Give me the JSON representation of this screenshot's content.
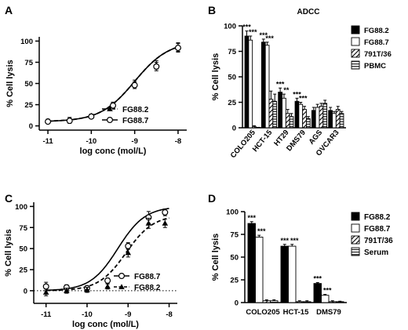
{
  "chart_data": [
    {
      "panel": "A",
      "type": "scatter",
      "title": "",
      "xlabel": "log conc (mol/L)",
      "ylabel": "% Cell lysis",
      "xlim": [
        -11.2,
        -7.8
      ],
      "ylim": [
        -5,
        105
      ],
      "xticks": [
        -11,
        -10,
        -9,
        -8
      ],
      "yticks": [
        0,
        25,
        50,
        75,
        100
      ],
      "legend_position": "bottom-right",
      "fit": {
        "bottom": 5,
        "top": 100,
        "logEC50": -9.0,
        "hill": 1.1
      },
      "series": [
        {
          "name": "FG88.2",
          "marker": "triangle",
          "line": "dashed",
          "x": [
            -11,
            -10.5,
            -10,
            -9.5,
            -9,
            -8.5,
            -8
          ],
          "y": [
            6,
            7,
            12,
            25,
            50,
            72,
            93
          ],
          "err": [
            2,
            3,
            2,
            3,
            4,
            5,
            5
          ]
        },
        {
          "name": "FG88.7",
          "marker": "circle",
          "line": "solid",
          "x": [
            -11,
            -10.5,
            -10,
            -9.5,
            -9,
            -8.5,
            -8
          ],
          "y": [
            5,
            6,
            11,
            24,
            48,
            70,
            92
          ],
          "err": [
            2,
            3,
            2,
            3,
            4,
            5,
            5
          ]
        }
      ]
    },
    {
      "panel": "B",
      "type": "bar",
      "title": "ADCC",
      "xlabel": "",
      "ylabel": "% Cell lysis",
      "ylim": [
        0,
        100
      ],
      "yticks": [
        0,
        25,
        50,
        75,
        100
      ],
      "legend_position": "top-right",
      "categories": [
        "COLO205",
        "HCT-15",
        "HT29",
        "DMS79",
        "AGS",
        "OVCAR3"
      ],
      "series": [
        {
          "name": "FG88.2",
          "pattern": "solid",
          "values": [
            90,
            84,
            35,
            26,
            17,
            17
          ],
          "err": [
            5,
            3,
            4,
            3,
            3,
            3
          ]
        },
        {
          "name": "FG88.7",
          "pattern": "white",
          "values": [
            86,
            81,
            29,
            23,
            20,
            14
          ],
          "err": [
            4,
            3,
            4,
            2,
            3,
            2
          ]
        },
        {
          "name": "791T/36",
          "pattern": "diagonal",
          "values": [
            1,
            28,
            14,
            18,
            21,
            18
          ],
          "err": [
            1,
            8,
            4,
            3,
            3,
            3
          ]
        },
        {
          "name": "PBMC",
          "pattern": "horizontal",
          "values": [
            0,
            26,
            11,
            9,
            24,
            14
          ],
          "err": [
            0,
            7,
            3,
            2,
            3,
            2
          ]
        }
      ],
      "annotations": [
        {
          "category": 0,
          "series": 0,
          "text": "***"
        },
        {
          "category": 0,
          "series": 1,
          "text": "***"
        },
        {
          "category": 1,
          "series": 0,
          "text": "***"
        },
        {
          "category": 1,
          "series": 1,
          "text": "***"
        },
        {
          "category": 2,
          "series": 0,
          "text": "***"
        },
        {
          "category": 2,
          "series": 1,
          "text": "**"
        },
        {
          "category": 3,
          "series": 0,
          "text": "***"
        },
        {
          "category": 3,
          "series": 1,
          "text": "***"
        }
      ]
    },
    {
      "panel": "C",
      "type": "scatter",
      "title": "",
      "xlabel": "log conc (mol/L)",
      "ylabel": "% Cell lysis",
      "xlim": [
        -11.3,
        -7.8
      ],
      "ylim": [
        -15,
        105
      ],
      "xticks": [
        -11,
        -10,
        -9,
        -8
      ],
      "yticks": [
        0,
        25,
        50,
        75,
        100
      ],
      "baseline": 0,
      "legend_position": "bottom-right",
      "series": [
        {
          "name": "FG88.7",
          "marker": "circle",
          "line": "solid",
          "fit": {
            "bottom": 0,
            "top": 100,
            "logEC50": -9.25,
            "hill": 1.3
          },
          "x": [
            -11,
            -10.5,
            -10,
            -9.5,
            -9,
            -8.5,
            -8.1
          ],
          "y": [
            5,
            4,
            3,
            12,
            53,
            87,
            93
          ],
          "err": [
            5,
            3,
            3,
            3,
            4,
            7,
            4
          ]
        },
        {
          "name": "FG88.2",
          "marker": "triangle",
          "line": "dashed",
          "fit": {
            "bottom": 0,
            "top": 90,
            "logEC50": -9.05,
            "hill": 1.3
          },
          "x": [
            -11,
            -10.5,
            -10,
            -9.5,
            -9,
            -8.5,
            -8.1
          ],
          "y": [
            -2,
            0,
            1,
            5,
            45,
            80,
            80
          ],
          "err": [
            4,
            3,
            3,
            3,
            5,
            6,
            5
          ]
        }
      ]
    },
    {
      "panel": "D",
      "type": "bar",
      "title": "",
      "xlabel": "",
      "ylabel": "% Cell lysis",
      "ylim": [
        0,
        100
      ],
      "yticks": [
        0,
        25,
        50,
        75,
        100
      ],
      "legend_position": "top-right",
      "categories": [
        "COLO205",
        "HCT-15",
        "DMS79"
      ],
      "series": [
        {
          "name": "FG88.2",
          "pattern": "solid",
          "values": [
            87,
            62,
            21
          ],
          "err": [
            2,
            2,
            1
          ]
        },
        {
          "name": "FG88.7",
          "pattern": "white",
          "values": [
            72,
            62,
            8
          ],
          "err": [
            2,
            2,
            1
          ]
        },
        {
          "name": "791T/36",
          "pattern": "diagonal",
          "values": [
            2,
            1,
            1
          ],
          "err": [
            1,
            1,
            1
          ]
        },
        {
          "name": "Serum",
          "pattern": "horizontal",
          "values": [
            2,
            1,
            1
          ],
          "err": [
            1,
            1,
            0.5
          ]
        }
      ],
      "annotations": [
        {
          "category": 0,
          "series": 0,
          "text": "***"
        },
        {
          "category": 0,
          "series": 1,
          "text": "***"
        },
        {
          "category": 1,
          "series": 0,
          "text": "***"
        },
        {
          "category": 1,
          "series": 1,
          "text": "***"
        },
        {
          "category": 2,
          "series": 0,
          "text": "***"
        },
        {
          "category": 2,
          "series": 1,
          "text": "***"
        }
      ]
    }
  ]
}
